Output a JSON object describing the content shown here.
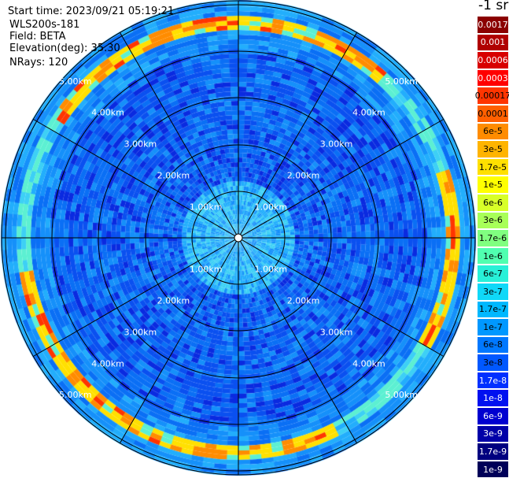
{
  "info": {
    "start_time": "Start time: 2023/09/21 05:19:21",
    "instrument": "WLS200s-181",
    "field": "Field: BETA",
    "elevation": "Elevation(deg): 35.30",
    "nrays": "NRays: 120"
  },
  "colorbar": {
    "unit": "-1 sr",
    "entries": [
      {
        "label": "0.0017",
        "color": "#8b0000",
        "text_color": "#ffffff"
      },
      {
        "label": "0.001",
        "color": "#b00000",
        "text_color": "#ffffff"
      },
      {
        "label": "0.0006",
        "color": "#d80000",
        "text_color": "#ffffff"
      },
      {
        "label": "0.0003",
        "color": "#ff0000",
        "text_color": "#ffffff"
      },
      {
        "label": "0.00017",
        "color": "#ff3500",
        "text_color": "#000000"
      },
      {
        "label": "0.0001",
        "color": "#ff6000",
        "text_color": "#000000"
      },
      {
        "label": "6e-5",
        "color": "#ff8c00",
        "text_color": "#000000"
      },
      {
        "label": "3e-5",
        "color": "#ffb400",
        "text_color": "#000000"
      },
      {
        "label": "1.7e-5",
        "color": "#ffe000",
        "text_color": "#000000"
      },
      {
        "label": "1e-5",
        "color": "#ffff00",
        "text_color": "#000000"
      },
      {
        "label": "6e-6",
        "color": "#d8ff28",
        "text_color": "#000000"
      },
      {
        "label": "3e-6",
        "color": "#a8ff58",
        "text_color": "#000000"
      },
      {
        "label": "1.7e-6",
        "color": "#80ff80",
        "text_color": "#000000"
      },
      {
        "label": "1e-6",
        "color": "#50ffb0",
        "text_color": "#000000"
      },
      {
        "label": "6e-7",
        "color": "#28f0d8",
        "text_color": "#000000"
      },
      {
        "label": "3e-7",
        "color": "#10d8f8",
        "text_color": "#000000"
      },
      {
        "label": "1.7e-7",
        "color": "#00b8ff",
        "text_color": "#000000"
      },
      {
        "label": "1e-7",
        "color": "#0098ff",
        "text_color": "#000000"
      },
      {
        "label": "6e-8",
        "color": "#0078ff",
        "text_color": "#000000"
      },
      {
        "label": "3e-8",
        "color": "#0058ff",
        "text_color": "#000000"
      },
      {
        "label": "1.7e-8",
        "color": "#0030ff",
        "text_color": "#ffffff"
      },
      {
        "label": "1e-8",
        "color": "#0010f0",
        "text_color": "#ffffff"
      },
      {
        "label": "6e-9",
        "color": "#0000d0",
        "text_color": "#ffffff"
      },
      {
        "label": "3e-9",
        "color": "#0000a8",
        "text_color": "#ffffff"
      },
      {
        "label": "1.7e-9",
        "color": "#000080",
        "text_color": "#ffffff"
      },
      {
        "label": "1e-9",
        "color": "#000058",
        "text_color": "#ffffff"
      }
    ]
  },
  "ppi": {
    "range_rings": [
      {
        "label": "1.00km"
      },
      {
        "label": "2.00km"
      },
      {
        "label": "3.00km"
      },
      {
        "label": "4.00km"
      },
      {
        "label": "5.00km"
      }
    ],
    "palette": [
      "#0a2ae0",
      "#0a50f0",
      "#0a6ff5",
      "#1590fa",
      "#22aefc",
      "#3dd0f5",
      "#5cf0d2",
      "#ffe000",
      "#ff8c00",
      "#ff3500"
    ]
  }
}
